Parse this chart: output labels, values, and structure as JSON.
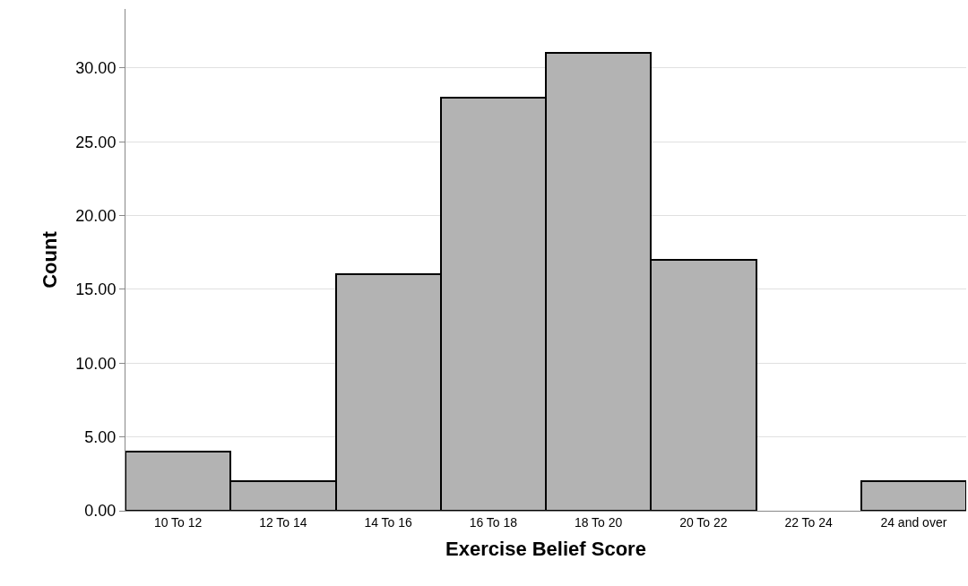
{
  "chart_data": {
    "type": "bar",
    "xlabel": "Exercise Belief Score",
    "ylabel": "Count",
    "categories": [
      "10 To 12",
      "12 To 14",
      "14 To 16",
      "16 To 18",
      "18 To 20",
      "20 To 22",
      "22 To 24",
      "24 and over"
    ],
    "values": [
      4,
      2,
      16,
      28,
      31,
      17,
      0,
      2
    ],
    "color": "#b3b3b3",
    "ylim": [
      0,
      34
    ],
    "yticks": [
      {
        "value": 0,
        "label": "0.00"
      },
      {
        "value": 5,
        "label": "5.00"
      },
      {
        "value": 10,
        "label": "10.00"
      },
      {
        "value": 15,
        "label": "15.00"
      },
      {
        "value": 20,
        "label": "20.00"
      },
      {
        "value": 25,
        "label": "25.00"
      },
      {
        "value": 30,
        "label": "30.00"
      }
    ],
    "grid": "y"
  }
}
